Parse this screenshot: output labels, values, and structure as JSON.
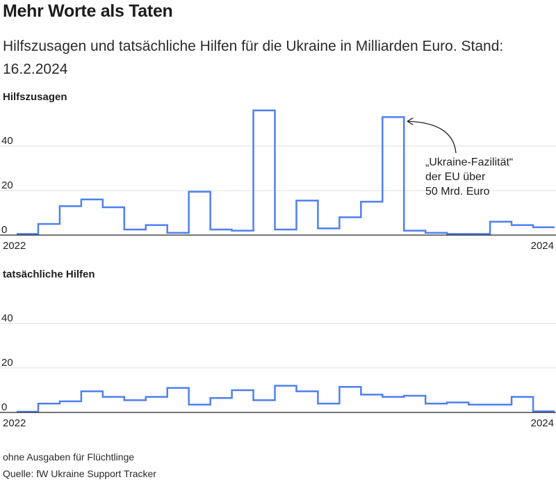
{
  "title": "Mehr Worte als Taten",
  "subtitle": "Hilfszusagen und tatsächliche Hilfen für die Ukraine in Milliarden Euro. Stand: 16.2.2024",
  "note": "ohne Ausgaben für Flüchtlinge",
  "source": "Quelle: fW Ukraine Support Tracker",
  "colors": {
    "line": "#4f7ff0",
    "grid": "#dddddd",
    "axis": "#222222",
    "text": "#222222"
  },
  "chart_data": [
    {
      "type": "line",
      "step": true,
      "title": "Hilfszusagen",
      "ylim": [
        0,
        60
      ],
      "yticks": [
        0,
        20,
        40
      ],
      "x_start_label": "2022",
      "x_end_label": "2024",
      "grid": true,
      "categories": [
        "2022-01",
        "2022-02",
        "2022-03",
        "2022-04",
        "2022-05",
        "2022-06",
        "2022-07",
        "2022-08",
        "2022-09",
        "2022-10",
        "2022-11",
        "2022-12",
        "2023-01",
        "2023-02",
        "2023-03",
        "2023-04",
        "2023-05",
        "2023-06",
        "2023-07",
        "2023-08",
        "2023-09",
        "2023-10",
        "2023-11",
        "2023-12",
        "2024-01"
      ],
      "values": [
        0.5,
        5,
        13,
        16,
        12.5,
        2.5,
        4.5,
        1,
        19.5,
        2.5,
        2,
        56,
        2.5,
        15.5,
        3,
        8,
        15,
        53,
        2,
        1,
        0.5,
        0.5,
        6,
        4.5,
        3.5
      ],
      "annotation": {
        "lines": [
          "„Ukraine-Fazilität“",
          "der EU über",
          "50 Mrd. Euro"
        ],
        "target": "2023-06"
      }
    },
    {
      "type": "line",
      "step": true,
      "title": "tatsächliche Hilfen",
      "ylim": [
        0,
        60
      ],
      "yticks": [
        0,
        20,
        40
      ],
      "x_start_label": "2022",
      "x_end_label": "2024",
      "grid": true,
      "categories": [
        "2022-01",
        "2022-02",
        "2022-03",
        "2022-04",
        "2022-05",
        "2022-06",
        "2022-07",
        "2022-08",
        "2022-09",
        "2022-10",
        "2022-11",
        "2022-12",
        "2023-01",
        "2023-02",
        "2023-03",
        "2023-04",
        "2023-05",
        "2023-06",
        "2023-07",
        "2023-08",
        "2023-09",
        "2023-10",
        "2023-11",
        "2023-12",
        "2024-01"
      ],
      "values": [
        0.3,
        4,
        5,
        9.5,
        7,
        5.5,
        7,
        11,
        3.5,
        6.5,
        10,
        5.5,
        12,
        9.5,
        4,
        11.5,
        8,
        7,
        7.5,
        4,
        4.5,
        3.5,
        3.5,
        7,
        0.5
      ]
    }
  ]
}
